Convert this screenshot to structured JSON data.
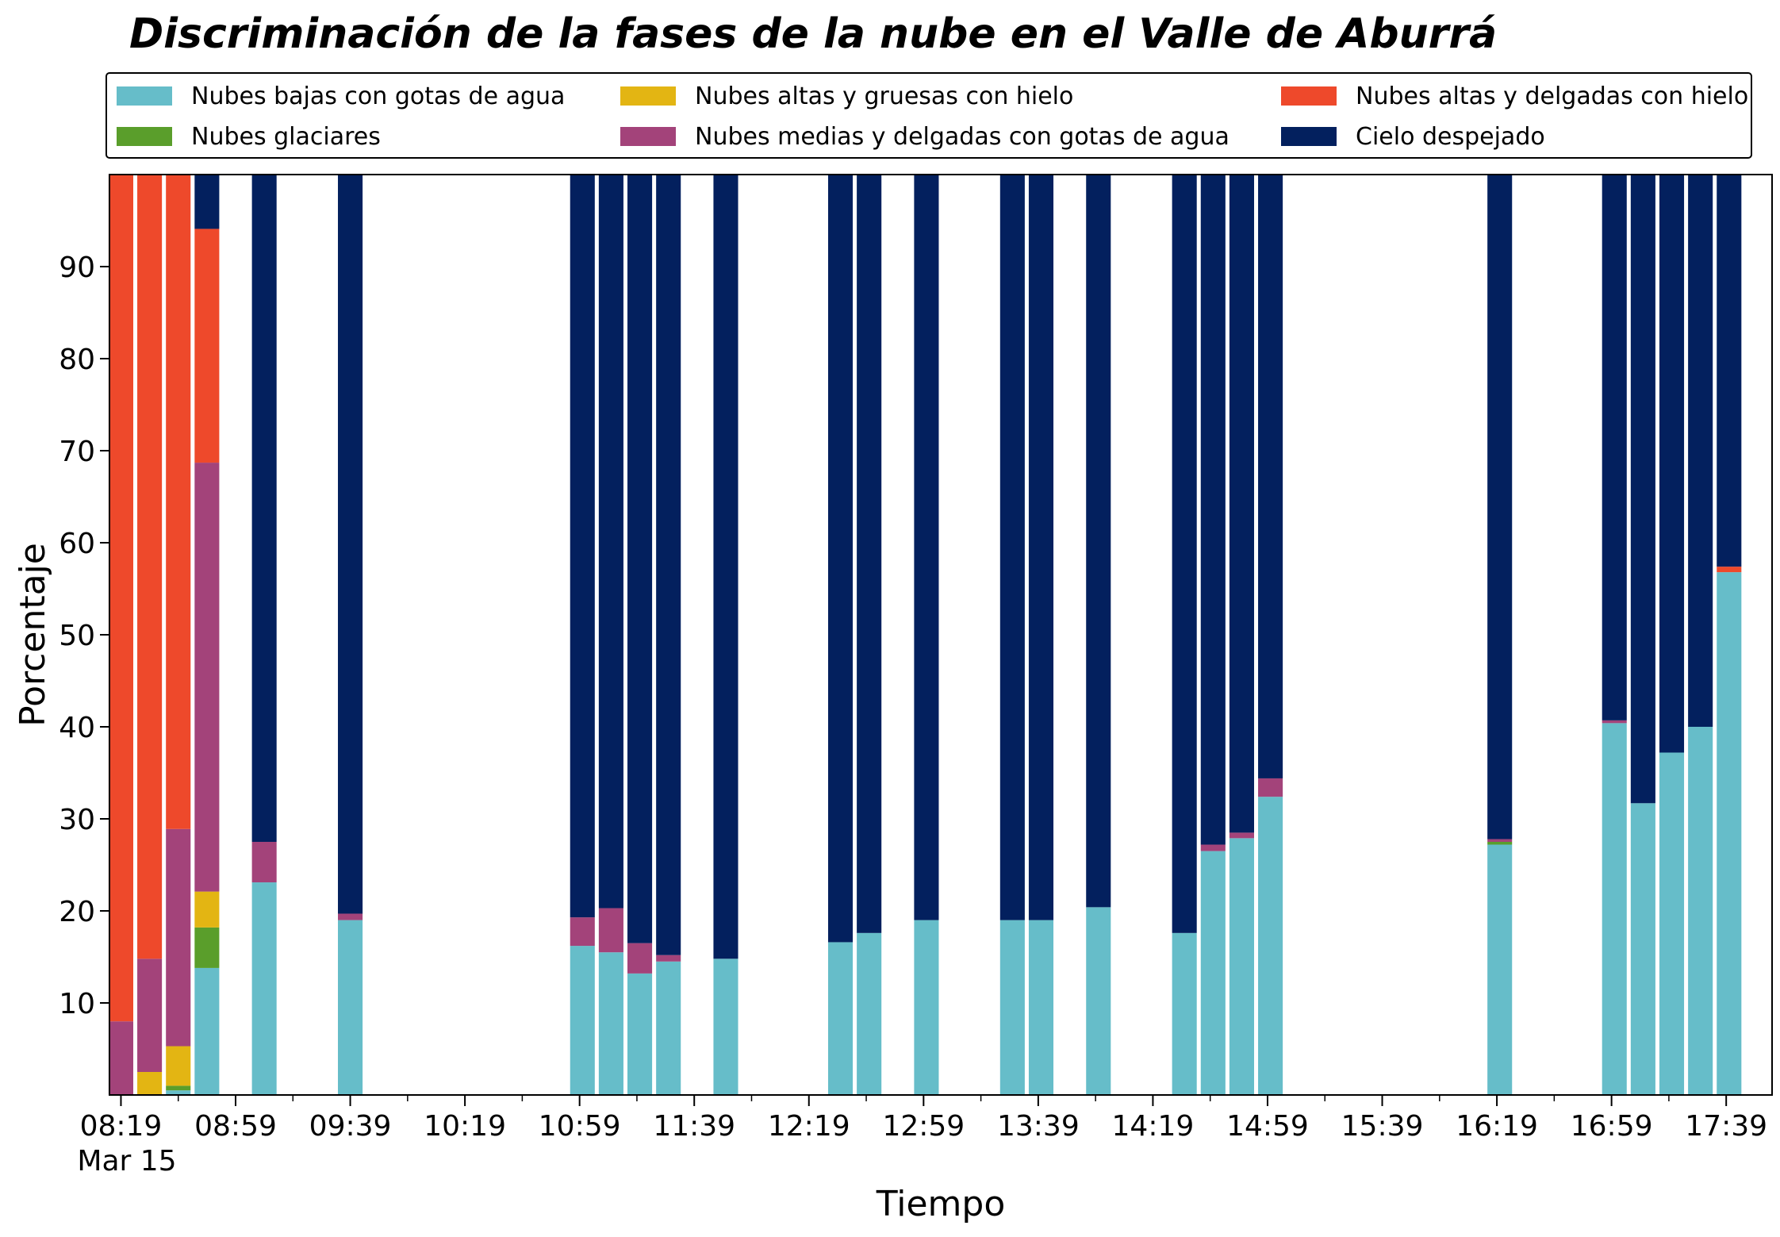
{
  "chart_data": {
    "type": "bar",
    "stacked": true,
    "title": "Discriminación de la fases de la nube en el Valle de Aburrá",
    "xlabel": "Tiempo",
    "ylabel": "Porcentaje",
    "ylim": [
      0,
      100
    ],
    "yticks": [
      10,
      20,
      30,
      40,
      50,
      60,
      70,
      80,
      90
    ],
    "x_unit_minutes": 10,
    "xlim_minutes": [
      "08:15",
      "17:55"
    ],
    "xtick_labels": [
      "08:19",
      "08:59",
      "09:39",
      "10:19",
      "10:59",
      "11:39",
      "12:19",
      "12:59",
      "13:39",
      "14:19",
      "14:59",
      "15:39",
      "16:19",
      "16:59",
      "17:39"
    ],
    "xtick_sublabel": "Mar 15",
    "legend_position": "top",
    "times": [
      "08:19",
      "08:29",
      "08:39",
      "08:49",
      "09:09",
      "09:39",
      "11:00",
      "11:10",
      "11:20",
      "11:30",
      "11:50",
      "12:30",
      "12:40",
      "13:00",
      "13:30",
      "13:40",
      "14:00",
      "14:30",
      "14:40",
      "14:50",
      "15:00",
      "16:20",
      "17:00",
      "17:10",
      "17:20",
      "17:30",
      "17:40"
    ],
    "series": [
      {
        "name": "Nubes bajas con gotas de agua",
        "color": "#66bdc9",
        "values": [
          0,
          0,
          0.5,
          13.8,
          23.1,
          19.0,
          16.2,
          15.5,
          13.2,
          14.5,
          14.8,
          16.6,
          17.6,
          19.0,
          19.0,
          19.0,
          20.4,
          17.6,
          26.5,
          27.9,
          32.4,
          27.2,
          40.4,
          31.7,
          37.2,
          40.0,
          56.8
        ]
      },
      {
        "name": "Nubes glaciares",
        "color": "#5a9e2b",
        "values": [
          0,
          0,
          0.5,
          4.4,
          0,
          0,
          0,
          0,
          0,
          0,
          0,
          0,
          0,
          0,
          0,
          0,
          0,
          0,
          0,
          0,
          0,
          0.3,
          0,
          0,
          0,
          0,
          0
        ]
      },
      {
        "name": "Nubes altas y gruesas con hielo",
        "color": "#e3b513",
        "values": [
          0,
          2.5,
          4.3,
          3.9,
          0,
          0,
          0,
          0,
          0,
          0,
          0,
          0,
          0,
          0,
          0,
          0,
          0,
          0,
          0,
          0,
          0,
          0,
          0,
          0,
          0,
          0,
          0
        ]
      },
      {
        "name": "Nubes medias y delgadas con gotas de agua",
        "color": "#a3437a",
        "values": [
          8.0,
          12.3,
          23.6,
          46.6,
          4.4,
          0.7,
          3.1,
          4.8,
          3.3,
          0.7,
          0,
          0,
          0,
          0,
          0,
          0,
          0,
          0,
          0.7,
          0.6,
          2.0,
          0.3,
          0.3,
          0,
          0,
          0,
          0
        ]
      },
      {
        "name": "Nubes altas y delgadas con hielo",
        "color": "#ee492b",
        "values": [
          92.0,
          85.2,
          71.1,
          25.4,
          0,
          0,
          0,
          0,
          0,
          0,
          0,
          0,
          0,
          0,
          0,
          0,
          0,
          0,
          0,
          0,
          0,
          0,
          0,
          0,
          0,
          0,
          0.6
        ]
      },
      {
        "name": "Cielo despejado",
        "color": "#03205e",
        "values": [
          0,
          0,
          0,
          5.9,
          72.5,
          80.3,
          80.7,
          79.7,
          83.5,
          84.8,
          85.2,
          83.4,
          82.4,
          81.0,
          81.0,
          81.0,
          79.6,
          82.4,
          72.8,
          71.5,
          65.6,
          72.2,
          59.3,
          68.3,
          62.8,
          60.0,
          42.6
        ]
      }
    ]
  },
  "legend_order": [
    0,
    2,
    4,
    1,
    3,
    5
  ]
}
